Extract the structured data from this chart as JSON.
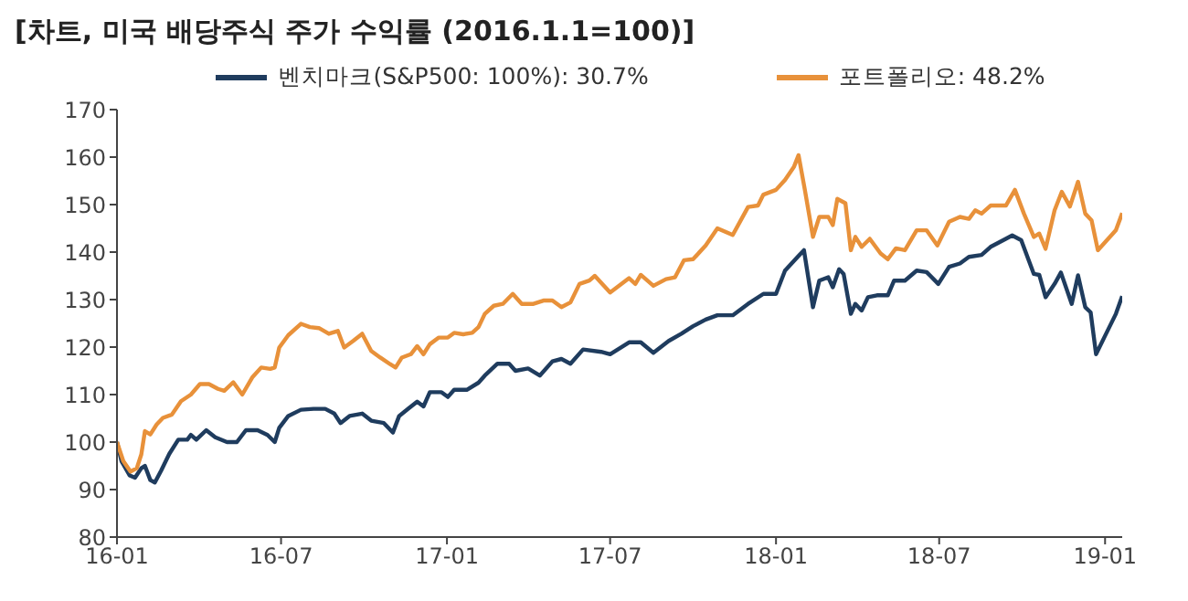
{
  "chart_data": {
    "type": "line",
    "title": "[차트, 미국 배당주식 주가 수익률 (2016.1.1=100)]",
    "legend": "top",
    "grid": false,
    "marker": "none",
    "line_style": "solid",
    "xlim": [
      "2016-01-01",
      "2019-01-20"
    ],
    "xticks": [
      {
        "value": "2016-01-01",
        "label": "16-01"
      },
      {
        "value": "2016-07-01",
        "label": "16-07"
      },
      {
        "value": "2017-01-01",
        "label": "17-01"
      },
      {
        "value": "2017-07-01",
        "label": "17-07"
      },
      {
        "value": "2018-01-01",
        "label": "18-01"
      },
      {
        "value": "2018-07-01",
        "label": "18-07"
      },
      {
        "value": "2019-01-01",
        "label": "19-01"
      }
    ],
    "ylim": [
      80,
      170
    ],
    "yticks": [
      80,
      90,
      100,
      110,
      120,
      130,
      140,
      150,
      160,
      170
    ],
    "series": [
      {
        "name": "벤치마크(S&P500: 100%): 30.7%",
        "color": "#1f3c5e",
        "x": [
          "2016-01-01",
          "2016-01-06",
          "2016-01-15",
          "2016-01-21",
          "2016-01-28",
          "2016-02-01",
          "2016-02-07",
          "2016-02-12",
          "2016-02-19",
          "2016-02-28",
          "2016-03-09",
          "2016-03-19",
          "2016-03-23",
          "2016-03-29",
          "2016-04-09",
          "2016-04-19",
          "2016-05-02",
          "2016-05-13",
          "2016-05-23",
          "2016-06-05",
          "2016-06-16",
          "2016-06-24",
          "2016-06-29",
          "2016-07-09",
          "2016-07-23",
          "2016-08-06",
          "2016-08-19",
          "2016-08-29",
          "2016-09-05",
          "2016-09-15",
          "2016-09-29",
          "2016-10-09",
          "2016-10-23",
          "2016-11-02",
          "2016-11-09",
          "2016-11-19",
          "2016-11-29",
          "2016-12-06",
          "2016-12-13",
          "2016-12-26",
          "2017-01-02",
          "2017-01-09",
          "2017-01-23",
          "2017-02-05",
          "2017-02-12",
          "2017-02-26",
          "2017-03-11",
          "2017-03-18",
          "2017-04-01",
          "2017-04-14",
          "2017-04-28",
          "2017-05-08",
          "2017-05-18",
          "2017-06-01",
          "2017-06-21",
          "2017-07-01",
          "2017-07-22",
          "2017-08-04",
          "2017-08-18",
          "2017-09-04",
          "2017-09-18",
          "2017-10-01",
          "2017-10-15",
          "2017-10-28",
          "2017-11-14",
          "2017-12-01",
          "2017-12-18",
          "2018-01-01",
          "2018-01-11",
          "2018-01-25",
          "2018-02-01",
          "2018-02-11",
          "2018-02-18",
          "2018-02-28",
          "2018-03-05",
          "2018-03-12",
          "2018-03-17",
          "2018-03-25",
          "2018-03-30",
          "2018-04-06",
          "2018-04-13",
          "2018-04-23",
          "2018-05-05",
          "2018-05-12",
          "2018-05-24",
          "2018-06-06",
          "2018-06-17",
          "2018-06-30",
          "2018-07-12",
          "2018-07-24",
          "2018-08-03",
          "2018-08-17",
          "2018-08-27",
          "2018-09-10",
          "2018-09-20",
          "2018-09-30",
          "2018-10-14",
          "2018-10-20",
          "2018-10-27",
          "2018-11-06",
          "2018-11-13",
          "2018-11-25",
          "2018-12-02",
          "2018-12-10",
          "2018-12-16",
          "2018-12-22",
          "2018-12-31",
          "2019-01-13",
          "2019-01-20"
        ],
        "values": [
          100,
          96,
          93,
          92.5,
          94.5,
          95,
          92,
          91.5,
          94,
          97.5,
          100.5,
          100.5,
          101.5,
          100.5,
          102.5,
          101,
          100,
          100,
          102.5,
          102.5,
          101.5,
          100,
          103,
          105.5,
          106.8,
          107,
          107,
          106,
          104,
          105.5,
          106,
          104.5,
          104,
          102,
          105.5,
          107,
          108.5,
          107.5,
          110.5,
          110.5,
          109.5,
          111,
          111,
          112.5,
          114,
          116.5,
          116.5,
          115,
          115.5,
          114,
          117,
          117.5,
          116.5,
          119.5,
          119,
          118.5,
          121,
          121,
          118.8,
          121.3,
          122.8,
          124.4,
          125.8,
          126.7,
          126.7,
          129.1,
          131.2,
          131.2,
          136.1,
          139,
          140.4,
          128.4,
          134,
          134.7,
          132.6,
          136.4,
          135.4,
          127,
          129.1,
          127.7,
          130.5,
          130.9,
          130.9,
          134,
          134,
          136.1,
          135.8,
          133.3,
          136.9,
          137.6,
          139,
          139.4,
          141.1,
          142.5,
          143.5,
          142.5,
          135.4,
          135.2,
          130.5,
          133.3,
          135.7,
          129.1,
          135.1,
          128.4,
          127.3,
          118.5,
          122,
          127,
          130.7
        ]
      },
      {
        "name": "포트폴리오: 48.2%",
        "color": "#e8913a",
        "x": [
          "2016-01-01",
          "2016-01-08",
          "2016-01-16",
          "2016-01-23",
          "2016-01-28",
          "2016-02-01",
          "2016-02-07",
          "2016-02-14",
          "2016-02-21",
          "2016-03-02",
          "2016-03-12",
          "2016-03-23",
          "2016-04-02",
          "2016-04-12",
          "2016-04-22",
          "2016-04-29",
          "2016-05-09",
          "2016-05-19",
          "2016-05-30",
          "2016-06-09",
          "2016-06-19",
          "2016-06-24",
          "2016-06-29",
          "2016-07-09",
          "2016-07-23",
          "2016-08-02",
          "2016-08-12",
          "2016-08-23",
          "2016-09-02",
          "2016-09-09",
          "2016-09-19",
          "2016-09-29",
          "2016-10-09",
          "2016-10-19",
          "2016-10-30",
          "2016-11-05",
          "2016-11-12",
          "2016-11-22",
          "2016-11-29",
          "2016-12-06",
          "2016-12-13",
          "2016-12-23",
          "2017-01-02",
          "2017-01-09",
          "2017-01-19",
          "2017-01-29",
          "2017-02-05",
          "2017-02-12",
          "2017-02-22",
          "2017-03-04",
          "2017-03-15",
          "2017-03-25",
          "2017-04-07",
          "2017-04-18",
          "2017-04-28",
          "2017-05-08",
          "2017-05-18",
          "2017-05-28",
          "2017-06-08",
          "2017-06-14",
          "2017-07-01",
          "2017-07-22",
          "2017-07-29",
          "2017-08-04",
          "2017-08-18",
          "2017-09-01",
          "2017-09-11",
          "2017-09-21",
          "2017-10-01",
          "2017-10-15",
          "2017-10-28",
          "2017-11-14",
          "2017-12-01",
          "2017-12-12",
          "2017-12-18",
          "2018-01-01",
          "2018-01-11",
          "2018-01-21",
          "2018-01-26",
          "2018-02-02",
          "2018-02-11",
          "2018-02-18",
          "2018-02-28",
          "2018-03-05",
          "2018-03-10",
          "2018-03-19",
          "2018-03-25",
          "2018-03-30",
          "2018-04-06",
          "2018-04-15",
          "2018-04-27",
          "2018-05-05",
          "2018-05-14",
          "2018-05-24",
          "2018-06-06",
          "2018-06-17",
          "2018-06-29",
          "2018-07-12",
          "2018-07-24",
          "2018-08-03",
          "2018-08-10",
          "2018-08-17",
          "2018-08-27",
          "2018-09-13",
          "2018-09-23",
          "2018-10-03",
          "2018-10-14",
          "2018-10-20",
          "2018-10-27",
          "2018-11-06",
          "2018-11-14",
          "2018-11-23",
          "2018-12-02",
          "2018-12-10",
          "2018-12-17",
          "2018-12-24",
          "2019-01-03",
          "2019-01-13",
          "2019-01-20"
        ],
        "values": [
          100,
          96,
          93.8,
          94.5,
          97.4,
          102.3,
          101.6,
          103.7,
          105.1,
          105.8,
          108.6,
          110,
          112.2,
          112.2,
          111.2,
          110.8,
          112.6,
          110,
          113.6,
          115.7,
          115.4,
          115.7,
          119.9,
          122.5,
          124.9,
          124.2,
          124,
          122.8,
          123.4,
          119.9,
          121.3,
          122.8,
          119.2,
          117.8,
          116.4,
          115.7,
          117.8,
          118.5,
          120.2,
          118.5,
          120.6,
          122,
          122,
          123,
          122.7,
          123,
          124.2,
          127,
          128.7,
          129.1,
          131.2,
          129.1,
          129.1,
          129.8,
          129.8,
          128.4,
          129.4,
          133.3,
          134,
          135,
          131.5,
          134.5,
          133.3,
          135.2,
          132.9,
          134.3,
          134.7,
          138.3,
          138.5,
          141.4,
          145,
          143.6,
          149.5,
          149.8,
          152.1,
          153.1,
          155.2,
          158,
          160.4,
          153.1,
          143.2,
          147.4,
          147.4,
          145.7,
          151.2,
          150.3,
          140.4,
          143.2,
          141.1,
          142.8,
          139.7,
          138.5,
          140.8,
          140.4,
          144.6,
          144.6,
          141.4,
          146.4,
          147.4,
          147,
          148.8,
          148.1,
          149.8,
          149.8,
          153.1,
          148.1,
          143.2,
          143.9,
          140.7,
          148.8,
          152.7,
          149.6,
          154.8,
          148.1,
          146.7,
          140.4,
          142.5,
          144.6,
          148.2
        ]
      }
    ]
  }
}
